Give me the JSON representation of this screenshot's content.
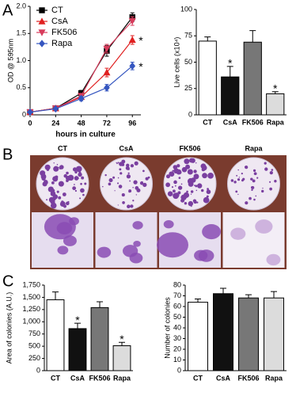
{
  "panels": [
    "A",
    "B",
    "C"
  ],
  "panel_b_columns": [
    "CT",
    "CsA",
    "FK506",
    "Rapa"
  ],
  "chart_data": [
    {
      "type": "line",
      "xlabel": "hours in culture",
      "ylabel": "OD @ 595nm",
      "x": [
        0,
        24,
        48,
        72,
        96
      ],
      "xlim": [
        0,
        104
      ],
      "xticks": [
        0,
        24,
        48,
        72,
        96
      ],
      "ylim": [
        0,
        2.0
      ],
      "yticks": [
        0,
        0.5,
        {
          "value": 1.0,
          "label": "1.0"
        },
        1.5,
        {
          "value": 2.0,
          "label": "2.0"
        }
      ],
      "legend": "top-left",
      "series": [
        {
          "name": "CT",
          "color": "#000000",
          "marker": "square",
          "values": [
            0.05,
            0.12,
            0.4,
            1.18,
            1.8
          ],
          "errors": [
            0.02,
            0.02,
            0.05,
            0.1,
            0.08
          ]
        },
        {
          "name": "CsA",
          "color": "#e02020",
          "marker": "triangle",
          "values": [
            0.05,
            0.12,
            0.33,
            0.78,
            1.38
          ],
          "errors": [
            0.02,
            0.02,
            0.04,
            0.08,
            0.08
          ]
        },
        {
          "name": "FK506",
          "color": "#d83c5c",
          "marker": "triangle-down",
          "values": [
            0.05,
            0.12,
            0.35,
            1.22,
            1.73
          ],
          "errors": [
            0.02,
            0.02,
            0.04,
            0.08,
            0.08
          ]
        },
        {
          "name": "Rapa",
          "color": "#3556c0",
          "marker": "diamond",
          "values": [
            0.05,
            0.11,
            0.3,
            0.5,
            0.9
          ],
          "errors": [
            0.02,
            0.02,
            0.04,
            0.06,
            0.07
          ]
        }
      ],
      "annotations": [
        {
          "label": "*",
          "series": "CsA",
          "x": 96
        },
        {
          "label": "*",
          "series": "Rapa",
          "x": 96
        }
      ]
    },
    {
      "type": "bar",
      "ylabel": "Live cells (x10⁴)",
      "categories": [
        "CT",
        "CsA",
        "FK506",
        "Rapa"
      ],
      "values": [
        70,
        36,
        69,
        20
      ],
      "errors": [
        4,
        10,
        11,
        2
      ],
      "colors": [
        "#ffffff",
        "#111111",
        "#777777",
        "#dcdcdc"
      ],
      "ylim": [
        0,
        100
      ],
      "yticks": [
        0,
        25,
        50,
        75,
        100
      ],
      "annotations": [
        {
          "label": "*",
          "category": "CsA"
        },
        {
          "label": "*",
          "category": "Rapa"
        }
      ]
    },
    {
      "type": "bar",
      "ylabel": "Area of colonies (A.U.)",
      "categories": [
        "CT",
        "CsA",
        "FK506",
        "Rapa"
      ],
      "values": [
        1450,
        860,
        1290,
        510
      ],
      "errors": [
        160,
        110,
        120,
        70
      ],
      "colors": [
        "#ffffff",
        "#111111",
        "#777777",
        "#dcdcdc"
      ],
      "ylim": [
        0,
        1750
      ],
      "yticks": [
        0,
        250,
        500,
        750,
        {
          "value": 1000,
          "label": "1,000"
        },
        {
          "value": 1250,
          "label": "1,250"
        },
        {
          "value": 1500,
          "label": "1,500"
        },
        {
          "value": 1750,
          "label": "1,750"
        }
      ],
      "annotations": [
        {
          "label": "*",
          "category": "CsA"
        },
        {
          "label": "*",
          "category": "Rapa"
        }
      ]
    },
    {
      "type": "bar",
      "ylabel": "Number of colonies",
      "categories": [
        "CT",
        "CsA",
        "FK506",
        "Rapa"
      ],
      "values": [
        64,
        72,
        68,
        68
      ],
      "errors": [
        3,
        5,
        3,
        6
      ],
      "colors": [
        "#ffffff",
        "#111111",
        "#777777",
        "#dcdcdc"
      ],
      "ylim": [
        0,
        80
      ],
      "yticks": [
        0,
        10,
        20,
        30,
        40,
        50,
        60,
        70,
        80
      ]
    }
  ]
}
